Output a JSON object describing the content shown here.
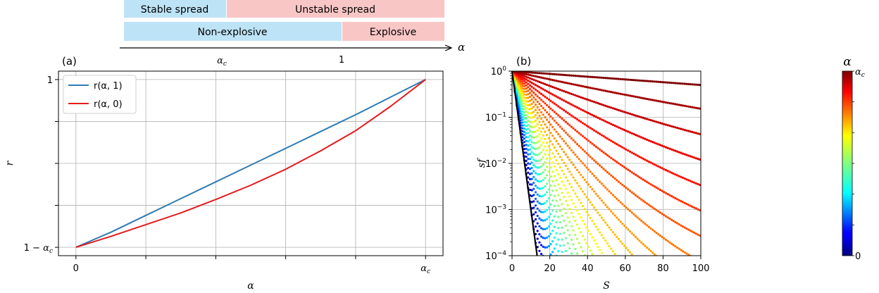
{
  "regime_bars": {
    "row1": [
      {
        "label": "Stable spread",
        "color": "#bde3f7",
        "from": "0",
        "to": "α_c"
      },
      {
        "label": "Unstable spread",
        "color": "#f9c6c6",
        "from": "α_c",
        "to": "max"
      }
    ],
    "row2": [
      {
        "label": "Non-explosive",
        "color": "#bde3f7",
        "from": "0",
        "to": "1"
      },
      {
        "label": "Explosive",
        "color": "#f9c6c6",
        "from": "1",
        "to": "max"
      }
    ],
    "axis_symbol": "α",
    "axis_marks": [
      {
        "key": "alpha_c",
        "label_base": "α",
        "label_sub": "c"
      },
      {
        "key": "one",
        "label": "1"
      }
    ]
  },
  "chart_data": [
    {
      "type": "line",
      "panel_label": "(a)",
      "xlabel": "α",
      "ylabel": "r",
      "xticks": [
        {
          "value": 0,
          "label": "0"
        },
        {
          "value": 0.2,
          "label": ""
        },
        {
          "value": 0.4,
          "label": ""
        },
        {
          "value": 0.6,
          "label": ""
        },
        {
          "value": 0.8,
          "label": ""
        },
        {
          "value": 1.0,
          "label_base": "α",
          "label_sub": "c"
        }
      ],
      "yticks": [
        {
          "value": 0,
          "label": "1 − α",
          "label_sub": "c"
        },
        {
          "value": 0.25,
          "label": ""
        },
        {
          "value": 0.5,
          "label": ""
        },
        {
          "value": 0.75,
          "label": ""
        },
        {
          "value": 1.0,
          "label": "1"
        }
      ],
      "xlim": [
        -0.05,
        1.05
      ],
      "ylim": [
        -0.05,
        1.05
      ],
      "grid": true,
      "legend_position": "upper-left",
      "series": [
        {
          "name": "r(α, 1)",
          "color": "#2e7bb2",
          "x": [
            0,
            0.1,
            0.2,
            0.3,
            0.4,
            0.5,
            0.6,
            0.7,
            0.8,
            0.9,
            1.0
          ],
          "y": [
            0,
            0.09,
            0.19,
            0.29,
            0.39,
            0.49,
            0.59,
            0.69,
            0.79,
            0.895,
            1.0
          ]
        },
        {
          "name": "r(α, 0)",
          "color": "#e41a1c",
          "x": [
            0,
            0.1,
            0.2,
            0.3,
            0.4,
            0.5,
            0.6,
            0.7,
            0.8,
            0.9,
            1.0
          ],
          "y": [
            0,
            0.065,
            0.135,
            0.205,
            0.285,
            0.37,
            0.465,
            0.575,
            0.695,
            0.84,
            1.0
          ]
        }
      ]
    },
    {
      "type": "scatter",
      "panel_label": "(b)",
      "xlabel": "S",
      "ylabel": "sf",
      "yscale": "log",
      "xlim": [
        0,
        100
      ],
      "ylim": [
        0.0001,
        1
      ],
      "xticks": [
        {
          "value": 0,
          "label": "0"
        },
        {
          "value": 20,
          "label": "20"
        },
        {
          "value": 40,
          "label": "40"
        },
        {
          "value": 60,
          "label": "60"
        },
        {
          "value": 80,
          "label": "80"
        },
        {
          "value": 100,
          "label": "100"
        }
      ],
      "yticks": [
        {
          "value": 1,
          "base": "10",
          "exp": "0"
        },
        {
          "value": 0.1,
          "base": "10",
          "exp": "−1"
        },
        {
          "value": 0.01,
          "base": "10",
          "exp": "−2"
        },
        {
          "value": 0.001,
          "base": "10",
          "exp": "−3"
        },
        {
          "value": 0.0001,
          "base": "10",
          "exp": "−4"
        }
      ],
      "grid": true,
      "colormap": "jet",
      "alpha_levels": 30,
      "alpha_min": 0.03,
      "alpha_max": 0.99,
      "boundary_line": {
        "color": "#000000",
        "x": [
          0,
          13.3
        ],
        "y": [
          1,
          0.0001
        ]
      },
      "colorbar": {
        "title": "α",
        "top_label_base": "α",
        "top_label_sub": "c",
        "bottom_label": "0",
        "minor_ticks": 6
      }
    }
  ]
}
